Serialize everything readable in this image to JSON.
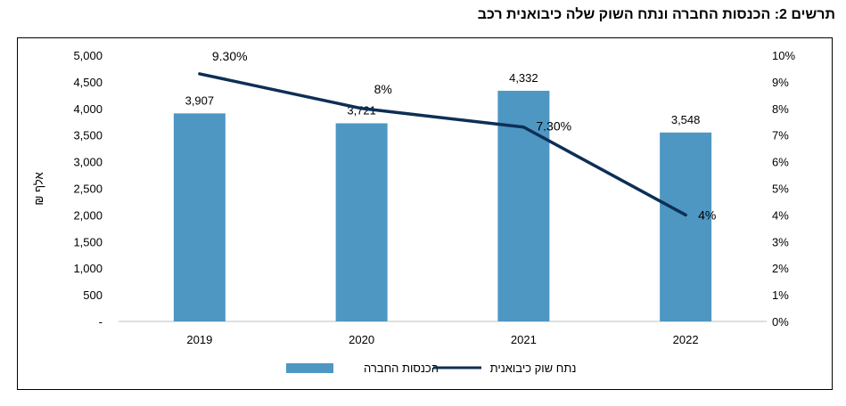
{
  "title": "תרשים 2: הכנסות החברה ונתח השוק שלה כיבואנית רכב",
  "chart_data": {
    "type": "bar+line",
    "categories": [
      "2019",
      "2020",
      "2021",
      "2022"
    ],
    "series": [
      {
        "name": "הכנסות החברה",
        "type": "bar",
        "axis": "left",
        "values": [
          3907,
          3721,
          4332,
          3548
        ],
        "labels": [
          "3,907",
          "3,721",
          "4,332",
          "3,548"
        ],
        "color": "#4E97C3"
      },
      {
        "name": "נתח שוק כיבואנית",
        "type": "line",
        "axis": "right",
        "values": [
          9.3,
          8.0,
          7.3,
          4.0
        ],
        "labels": [
          "9.30%",
          "8%",
          "7.30%",
          "4%"
        ],
        "color": "#0D2F56"
      }
    ],
    "ylabel": "אלף ₪",
    "ylim": [
      0,
      5000
    ],
    "y_ticks": [
      "-",
      "500",
      "1,000",
      "1,500",
      "2,000",
      "2,500",
      "3,000",
      "3,500",
      "4,000",
      "4,500",
      "5,000"
    ],
    "y2lim": [
      0,
      10
    ],
    "y2_ticks": [
      "0%",
      "1%",
      "2%",
      "3%",
      "4%",
      "5%",
      "6%",
      "7%",
      "8%",
      "9%",
      "10%"
    ],
    "legend_position": "bottom",
    "grid": false
  }
}
